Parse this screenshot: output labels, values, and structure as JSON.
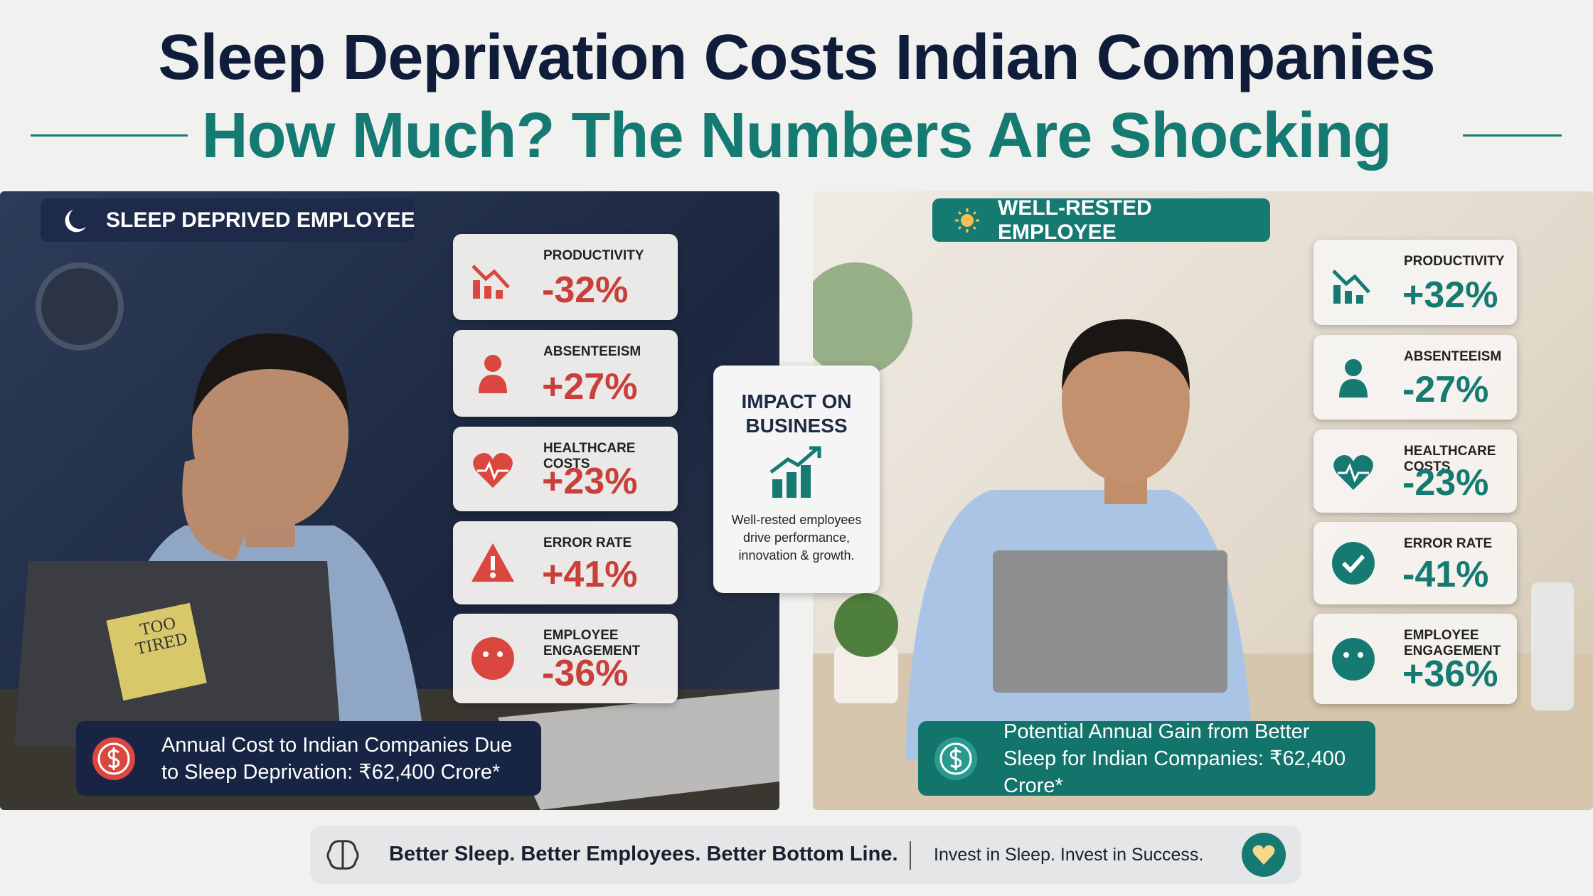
{
  "header": {
    "title": "Sleep Deprivation Costs Indian Companies",
    "subtitle": "How Much? The Numbers Are Shocking"
  },
  "left_panel": {
    "badge": "SLEEP DEPRIVED EMPLOYEE",
    "note": "TOO TIRED",
    "metrics": [
      {
        "label": "PRODUCTIVITY",
        "value": "-32%"
      },
      {
        "label": "ABSENTEEISM",
        "value": "+27%"
      },
      {
        "label": "HEALTHCARE COSTS",
        "value": "+23%"
      },
      {
        "label": "ERROR RATE",
        "value": "+41%"
      },
      {
        "label": "EMPLOYEE ENGAGEMENT",
        "value": "-36%"
      }
    ],
    "summary": "Annual Cost to Indian Companies Due to Sleep Deprivation: ₹62,400 Crore*"
  },
  "center": {
    "title": "IMPACT ON BUSINESS",
    "text": "Well-rested employees drive performance, innovation & growth."
  },
  "right_panel": {
    "badge": "WELL-RESTED EMPLOYEE",
    "metrics": [
      {
        "label": "PRODUCTIVITY",
        "value": "+32%"
      },
      {
        "label": "ABSENTEEISM",
        "value": "-27%"
      },
      {
        "label": "HEALTHCARE COSTS",
        "value": "-23%"
      },
      {
        "label": "ERROR RATE",
        "value": "-41%"
      },
      {
        "label": "EMPLOYEE ENGAGEMENT",
        "value": "+36%"
      }
    ],
    "summary": "Potential Annual Gain from Better Sleep for Indian Companies: ₹62,400 Crore*"
  },
  "footer": {
    "slogan": "Better Sleep. Better Employees. Better Bottom Line.",
    "tagline": "Invest in Sleep. Invest in Success."
  }
}
